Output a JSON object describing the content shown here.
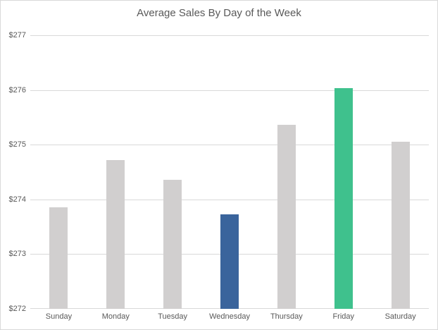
{
  "chart_data": {
    "type": "bar",
    "title": "Average Sales By Day of the Week",
    "categories": [
      "Sunday",
      "Monday",
      "Tuesday",
      "Wednesday",
      "Thursday",
      "Friday",
      "Saturday"
    ],
    "values": [
      273.86,
      274.72,
      274.36,
      273.73,
      275.37,
      276.03,
      275.05
    ],
    "ylim": [
      272,
      277
    ],
    "ytick_values": [
      277,
      276,
      275,
      274,
      273,
      272
    ],
    "ytick_labels": [
      "$277",
      "$276",
      "$275",
      "$274",
      "$273",
      "$272"
    ],
    "xlabel": "",
    "ylabel": "",
    "grid": true,
    "legend": false,
    "bar_colors": [
      "#D1CFCF",
      "#D1CFCF",
      "#D1CFCF",
      "#3A649C",
      "#D1CFCF",
      "#3FC18D",
      "#D1CFCF"
    ],
    "colors": {
      "default_bar": "#D1CFCF",
      "lowest_bar": "#3A649C",
      "highest_bar": "#3FC18D",
      "gridline": "#D9D9D9",
      "text": "#595959",
      "background": "#FFFFFF"
    }
  }
}
